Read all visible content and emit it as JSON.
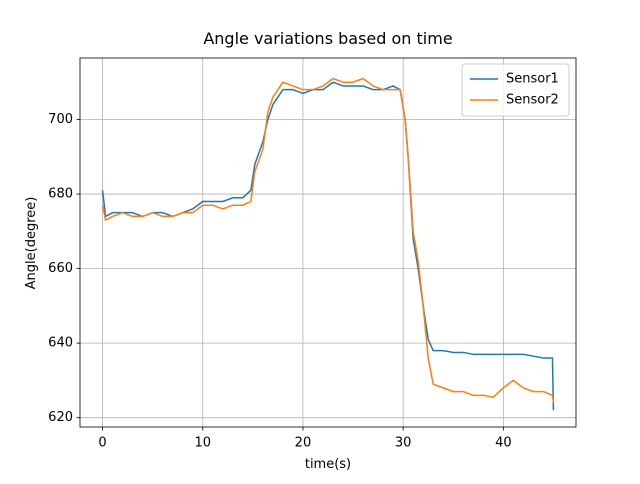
{
  "chart_data": {
    "type": "line",
    "title": "Angle variations based on time",
    "xlabel": "time(s)",
    "ylabel": "Angle(degree)",
    "x": [
      0,
      0.3,
      1,
      2,
      3,
      4,
      5,
      6,
      7,
      8,
      9,
      10,
      11,
      12,
      13,
      14,
      14.8,
      15.2,
      16,
      16.5,
      17,
      18,
      19,
      20,
      21,
      22,
      23,
      24,
      25,
      26,
      27,
      28,
      29,
      29.7,
      30.2,
      30.5,
      31,
      31.5,
      32,
      32.5,
      33,
      34,
      35,
      36,
      37,
      38,
      39,
      40,
      41,
      42,
      43,
      44,
      44.9,
      45
    ],
    "series": [
      {
        "name": "Sensor1",
        "color": "#1f77b4",
        "values": [
          681,
          674,
          675,
          675,
          675,
          674,
          675,
          675,
          674,
          675,
          676,
          678,
          678,
          678,
          679,
          679,
          681,
          688,
          694,
          700,
          704,
          708,
          708,
          707,
          708,
          708,
          710,
          709,
          709,
          709,
          708,
          708,
          709,
          708,
          700,
          690,
          668,
          660,
          650,
          641,
          638,
          638,
          637.5,
          637.5,
          637,
          637,
          637,
          637,
          637,
          637,
          636.5,
          636,
          636,
          622
        ]
      },
      {
        "name": "Sensor2",
        "color": "#ff7f0e",
        "values": [
          677,
          673,
          674,
          675,
          674,
          674,
          675,
          674,
          674,
          675,
          675,
          677,
          677,
          676,
          677,
          677,
          678,
          686,
          692,
          702,
          706,
          710,
          709,
          708,
          708,
          709,
          711,
          710,
          710,
          711,
          709,
          708,
          708,
          708,
          700,
          690,
          670,
          662,
          650,
          636,
          629,
          628,
          627,
          627,
          626,
          626,
          625.5,
          628,
          630,
          628,
          627,
          627,
          626,
          624
        ]
      }
    ],
    "xlim": [
      -2.25,
      47.25
    ],
    "ylim": [
      617.5,
      716.5
    ],
    "xticks": [
      0,
      10,
      20,
      30,
      40
    ],
    "yticks": [
      620,
      640,
      660,
      680,
      700
    ],
    "grid": true,
    "legend": "upper right"
  }
}
